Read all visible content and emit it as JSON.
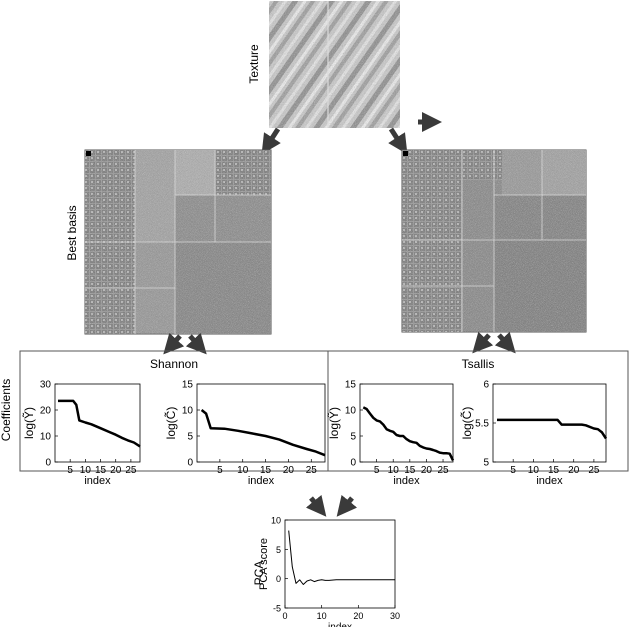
{
  "labels": {
    "texture": "Texture",
    "best_basis": "Best basis",
    "coefficients": "Coefficients",
    "shannon": "Shannon",
    "tsallis": "Tsallis",
    "pca": "PCA"
  },
  "colors": {
    "arrow": "#3a3a3a",
    "curve": "#000000",
    "frame": "#555555"
  },
  "chart_data": [
    {
      "type": "line",
      "panel": "Shannon",
      "xlabel": "index",
      "ylabel": "log(Ỹ)",
      "xlim": [
        0,
        28
      ],
      "ylim": [
        0,
        30
      ],
      "xticks": [
        5,
        10,
        15,
        20,
        25
      ],
      "yticks": [
        0,
        10,
        20,
        30
      ],
      "x": [
        1,
        6,
        7,
        8,
        10,
        12,
        15,
        18,
        20,
        22,
        24,
        26,
        28
      ],
      "y": [
        23.5,
        23.5,
        22,
        16,
        15.2,
        14.5,
        13,
        11.5,
        10.5,
        9.3,
        8.3,
        7.5,
        6
      ]
    },
    {
      "type": "line",
      "panel": "Shannon",
      "xlabel": "index",
      "ylabel": "log(C̃)",
      "xlim": [
        0,
        28
      ],
      "ylim": [
        0,
        15
      ],
      "xticks": [
        5,
        10,
        15,
        20,
        25
      ],
      "yticks": [
        0,
        5,
        10,
        15
      ],
      "x": [
        1,
        2,
        3,
        6,
        9,
        12,
        15,
        18,
        21,
        24,
        26,
        28
      ],
      "y": [
        10,
        9.3,
        6.5,
        6.4,
        6,
        5.5,
        5,
        4.3,
        3.3,
        2.5,
        2,
        1.3
      ]
    },
    {
      "type": "line",
      "panel": "Tsallis",
      "xlabel": "index",
      "ylabel": "log(Ỹ)",
      "xlim": [
        0,
        28
      ],
      "ylim": [
        0,
        15
      ],
      "xticks": [
        5,
        10,
        15,
        20,
        25
      ],
      "yticks": [
        0,
        5,
        10,
        15
      ],
      "x": [
        1,
        2,
        3,
        4,
        5,
        6,
        7,
        8,
        9,
        10,
        11,
        12,
        13,
        14,
        15,
        16,
        17,
        18,
        19,
        20,
        21,
        22,
        23,
        24,
        25,
        26,
        27,
        28
      ],
      "y": [
        10.5,
        10.2,
        9.3,
        8.5,
        8,
        7.8,
        7.2,
        6.3,
        6,
        5.8,
        5.2,
        5,
        5,
        4.4,
        4,
        3.8,
        3.7,
        3.1,
        2.8,
        2.6,
        2.5,
        2.3,
        2.1,
        1.8,
        1.7,
        1.7,
        1.6,
        0.3
      ]
    },
    {
      "type": "line",
      "panel": "Tsallis",
      "xlabel": "index",
      "ylabel": "log(C̃)",
      "xlim": [
        0,
        28
      ],
      "ylim": [
        5,
        6
      ],
      "xticks": [
        5,
        10,
        15,
        20,
        25
      ],
      "yticks": [
        5,
        5.5,
        6
      ],
      "yticklabels": [
        "5",
        "5.5",
        "6"
      ],
      "x": [
        1,
        16,
        17,
        22,
        23,
        25,
        26,
        27,
        28
      ],
      "y": [
        5.54,
        5.54,
        5.48,
        5.48,
        5.47,
        5.43,
        5.42,
        5.38,
        5.3
      ]
    },
    {
      "type": "line",
      "panel": "PCA",
      "xlabel": "index",
      "ylabel": "PCA score",
      "xlim": [
        0,
        30
      ],
      "ylim": [
        -5,
        10
      ],
      "xticks": [
        0,
        10,
        20,
        30
      ],
      "yticks": [
        -5,
        0,
        5,
        10
      ],
      "x": [
        1,
        2,
        3,
        4,
        5,
        6,
        7,
        8,
        9,
        10,
        11,
        12,
        14,
        16,
        20,
        25,
        30
      ],
      "y": [
        8.2,
        2,
        -0.8,
        -0.2,
        -1.0,
        -0.4,
        -0.2,
        -0.5,
        -0.3,
        -0.2,
        -0.3,
        -0.3,
        -0.2,
        -0.2,
        -0.2,
        -0.2,
        -0.2
      ]
    }
  ]
}
